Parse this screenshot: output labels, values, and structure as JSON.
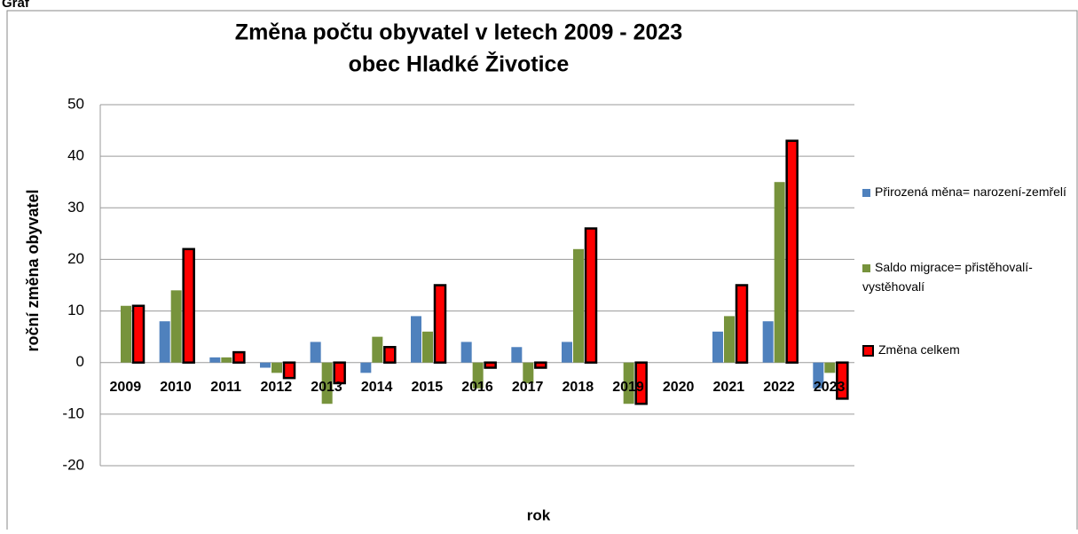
{
  "chart_data": {
    "type": "bar",
    "header": "Graf",
    "title": "Změna počtu obyvatel v letech 2009 - 2023",
    "subtitle": "obec Hladké Životice",
    "x_label": "rok",
    "y_label": "roční změna obyvatel",
    "categories": [
      "2009",
      "2010",
      "2011",
      "2012",
      "2013",
      "2014",
      "2015",
      "2016",
      "2017",
      "2018",
      "2019",
      "2020",
      "2021",
      "2022",
      "2023"
    ],
    "series": [
      {
        "name": "Přirozená měna= narození-zemřelí",
        "color": "#4f81bd",
        "values": [
          0,
          8,
          1,
          -1,
          4,
          -2,
          9,
          4,
          3,
          4,
          0,
          0,
          6,
          8,
          -5
        ]
      },
      {
        "name": "Saldo migrace= přistěhovalí-vystěhovalí",
        "color": "#77933c",
        "values": [
          11,
          14,
          1,
          -2,
          -8,
          5,
          6,
          -5,
          -4,
          22,
          -8,
          0,
          9,
          35,
          -2
        ]
      },
      {
        "name": "Změna celkem",
        "color": "#ff0000",
        "values": [
          11,
          22,
          2,
          -3,
          -4,
          3,
          15,
          -1,
          -1,
          26,
          -8,
          0,
          15,
          43,
          -7
        ]
      }
    ],
    "ylim": [
      -20,
      50
    ],
    "yticks": [
      -20,
      -10,
      0,
      10,
      20,
      30,
      40,
      50
    ],
    "grid": true,
    "legend": "right"
  }
}
